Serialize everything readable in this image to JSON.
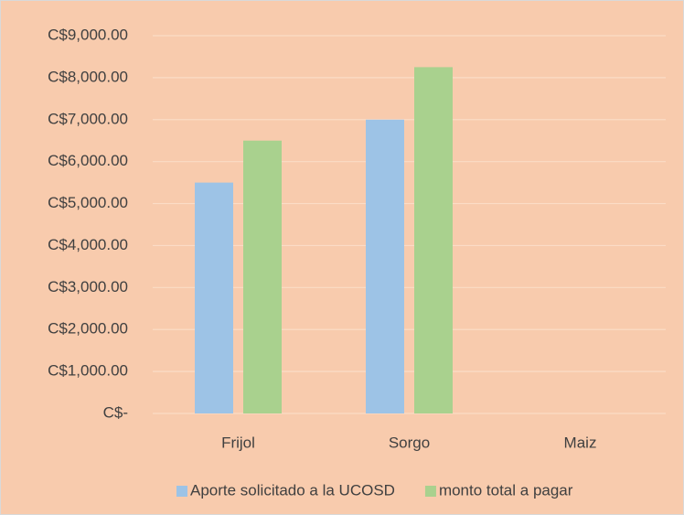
{
  "chart_data": {
    "type": "bar",
    "categories": [
      "Frijol",
      "Sorgo",
      "Maiz"
    ],
    "series": [
      {
        "name": "Aporte solicitado a la UCOSD",
        "color": "#9dc3e6",
        "values": [
          5500,
          7000,
          0
        ]
      },
      {
        "name": "monto total a pagar",
        "color": "#a9d18e",
        "values": [
          6500,
          8250,
          0
        ]
      }
    ],
    "ylim": [
      0,
      9000
    ],
    "yticks": [
      {
        "value": 0,
        "label": "C$-"
      },
      {
        "value": 1000,
        "label": "C$1,000.00"
      },
      {
        "value": 2000,
        "label": "C$2,000.00"
      },
      {
        "value": 3000,
        "label": "C$3,000.00"
      },
      {
        "value": 4000,
        "label": "C$4,000.00"
      },
      {
        "value": 5000,
        "label": "C$5,000.00"
      },
      {
        "value": 6000,
        "label": "C$6,000.00"
      },
      {
        "value": 7000,
        "label": "C$7,000.00"
      },
      {
        "value": 8000,
        "label": "C$8,000.00"
      },
      {
        "value": 9000,
        "label": "C$9,000.00"
      }
    ],
    "grid": true
  }
}
